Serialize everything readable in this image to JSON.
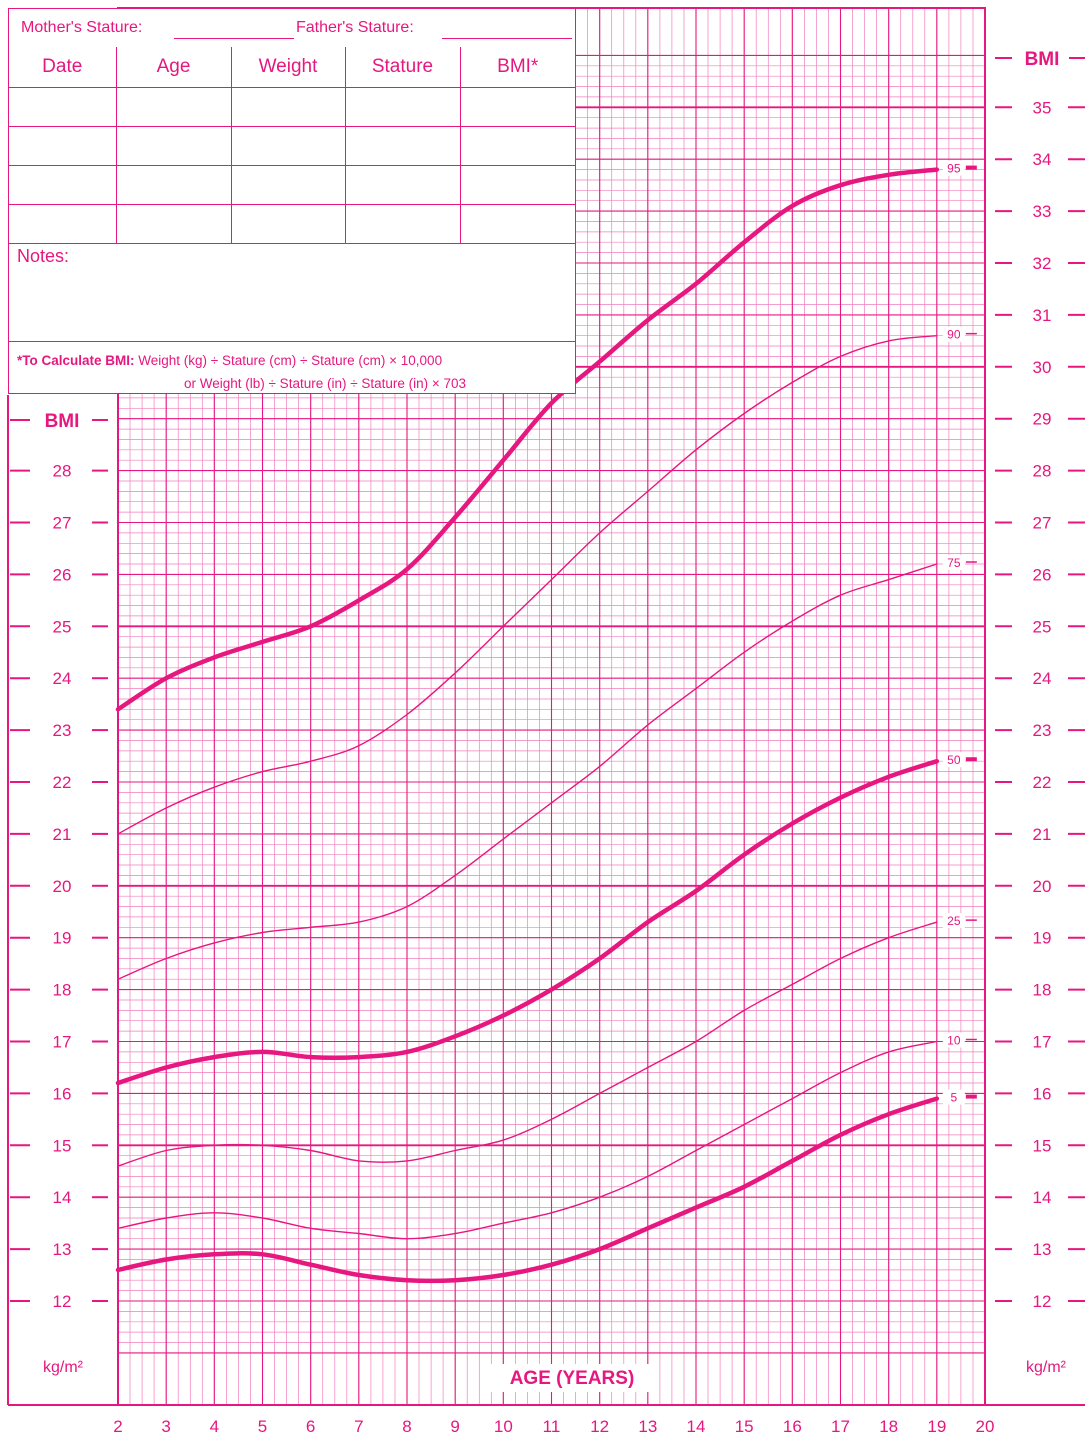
{
  "header": {
    "mother_stature_label": "Mother's Stature:",
    "father_stature_label": "Father's Stature:"
  },
  "record_table": {
    "columns": [
      "Date",
      "Age",
      "Weight",
      "Stature",
      "BMI*"
    ],
    "rows": 4
  },
  "notes_label": "Notes:",
  "formula": {
    "lead": "*To Calculate BMI:",
    "line1": "Weight (kg) ÷ Stature (cm) ÷ Stature (cm) × 10,000",
    "line2": "or Weight (lb) ÷ Stature (in) ÷ Stature (in) × 703"
  },
  "colors": {
    "accent": "#e6177f",
    "grid": "#f27fbd",
    "grid_major": "#e6177f"
  },
  "chart_data": {
    "type": "line",
    "xlabel": "AGE (YEARS)",
    "ylabel_left": "BMI",
    "ylabel_right": "BMI",
    "unit_left": "kg/m²",
    "unit_right": "kg/m²",
    "xlim": [
      2,
      20
    ],
    "ylim_left": [
      12,
      28
    ],
    "ylim_right": [
      12,
      35
    ],
    "x_ticks": [
      2,
      3,
      4,
      5,
      6,
      7,
      8,
      9,
      10,
      11,
      12,
      13,
      14,
      15,
      16,
      17,
      18,
      19,
      20
    ],
    "y_ticks_left": [
      12,
      13,
      14,
      15,
      16,
      17,
      18,
      19,
      20,
      21,
      22,
      23,
      24,
      25,
      26,
      27,
      28
    ],
    "y_ticks_right": [
      12,
      13,
      14,
      15,
      16,
      17,
      18,
      19,
      20,
      21,
      22,
      23,
      24,
      25,
      26,
      27,
      28,
      29,
      30,
      31,
      32,
      33,
      34,
      35
    ],
    "grid": true,
    "series": [
      {
        "name": "95",
        "bold": true,
        "x": [
          2,
          3,
          4,
          5,
          6,
          7,
          8,
          9,
          10,
          11,
          12,
          13,
          14,
          15,
          16,
          17,
          18,
          19
        ],
        "y": [
          23.4,
          24.0,
          24.4,
          24.7,
          25.0,
          25.5,
          26.1,
          27.1,
          28.2,
          29.3,
          30.1,
          30.9,
          31.6,
          32.4,
          33.1,
          33.5,
          33.7,
          33.8
        ]
      },
      {
        "name": "90",
        "bold": false,
        "x": [
          2,
          3,
          4,
          5,
          6,
          7,
          8,
          9,
          10,
          11,
          12,
          13,
          14,
          15,
          16,
          17,
          18,
          19
        ],
        "y": [
          21.0,
          21.5,
          21.9,
          22.2,
          22.4,
          22.7,
          23.3,
          24.1,
          25.0,
          25.9,
          26.8,
          27.6,
          28.4,
          29.1,
          29.7,
          30.2,
          30.5,
          30.6
        ]
      },
      {
        "name": "75",
        "bold": false,
        "x": [
          2,
          3,
          4,
          5,
          6,
          7,
          8,
          9,
          10,
          11,
          12,
          13,
          14,
          15,
          16,
          17,
          18,
          19
        ],
        "y": [
          18.2,
          18.6,
          18.9,
          19.1,
          19.2,
          19.3,
          19.6,
          20.2,
          20.9,
          21.6,
          22.3,
          23.1,
          23.8,
          24.5,
          25.1,
          25.6,
          25.9,
          26.2
        ]
      },
      {
        "name": "50",
        "bold": true,
        "x": [
          2,
          3,
          4,
          5,
          6,
          7,
          8,
          9,
          10,
          11,
          12,
          13,
          14,
          15,
          16,
          17,
          18,
          19
        ],
        "y": [
          16.2,
          16.5,
          16.7,
          16.8,
          16.7,
          16.7,
          16.8,
          17.1,
          17.5,
          18.0,
          18.6,
          19.3,
          19.9,
          20.6,
          21.2,
          21.7,
          22.1,
          22.4
        ]
      },
      {
        "name": "25",
        "bold": false,
        "x": [
          2,
          3,
          4,
          5,
          6,
          7,
          8,
          9,
          10,
          11,
          12,
          13,
          14,
          15,
          16,
          17,
          18,
          19
        ],
        "y": [
          14.6,
          14.9,
          15.0,
          15.0,
          14.9,
          14.7,
          14.7,
          14.9,
          15.1,
          15.5,
          16.0,
          16.5,
          17.0,
          17.6,
          18.1,
          18.6,
          19.0,
          19.3
        ]
      },
      {
        "name": "10",
        "bold": false,
        "x": [
          2,
          3,
          4,
          5,
          6,
          7,
          8,
          9,
          10,
          11,
          12,
          13,
          14,
          15,
          16,
          17,
          18,
          19
        ],
        "y": [
          13.4,
          13.6,
          13.7,
          13.6,
          13.4,
          13.3,
          13.2,
          13.3,
          13.5,
          13.7,
          14.0,
          14.4,
          14.9,
          15.4,
          15.9,
          16.4,
          16.8,
          17.0
        ]
      },
      {
        "name": "5",
        "bold": true,
        "x": [
          2,
          3,
          4,
          5,
          6,
          7,
          8,
          9,
          10,
          11,
          12,
          13,
          14,
          15,
          16,
          17,
          18,
          19
        ],
        "y": [
          12.6,
          12.8,
          12.9,
          12.9,
          12.7,
          12.5,
          12.4,
          12.4,
          12.5,
          12.7,
          13.0,
          13.4,
          13.8,
          14.2,
          14.7,
          15.2,
          15.6,
          15.9
        ]
      }
    ]
  }
}
